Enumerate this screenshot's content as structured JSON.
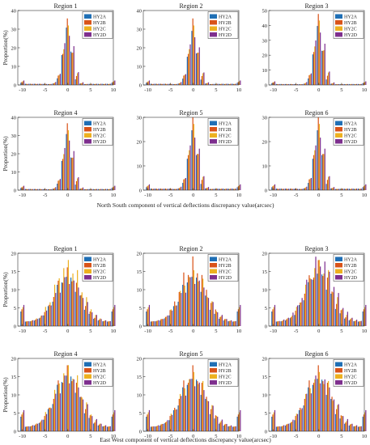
{
  "figure": {
    "series_colors": {
      "HY2A": "#1f6fb5",
      "HY2B": "#d95319",
      "HY2C": "#edb120",
      "HY2D": "#7e2f8e"
    },
    "xticks": [
      -10,
      -5,
      0,
      5,
      10
    ],
    "ylabel": "Proportion(%)",
    "groups": [
      {
        "xlabel": "North South component of vertical deflections discrepancy value(arcsec)"
      },
      {
        "xlabel": "East West component of vertical deflections discrepancy value(arcsec)"
      }
    ]
  },
  "chart_data": [
    {
      "group": 0,
      "type": "bar",
      "title": "Region 1",
      "legend": [
        "HY2A",
        "HY2B",
        "HY2C",
        "HY2D"
      ],
      "legend_position": "top-right",
      "xlim": [
        -11,
        10
      ],
      "ylim": [
        0,
        40
      ],
      "yticks": [
        0,
        10,
        20,
        30,
        40
      ],
      "series": [
        {
          "name": "HY2A",
          "peak": 34
        },
        {
          "name": "HY2B",
          "peak": 35
        },
        {
          "name": "HY2C",
          "peak": 33
        },
        {
          "name": "HY2D",
          "peak": 32
        }
      ]
    },
    {
      "group": 0,
      "type": "bar",
      "title": "Region 2",
      "legend": [
        "HY2A",
        "HY2B",
        "HY2C",
        "HY2D"
      ],
      "legend_position": "top-right",
      "xlim": [
        -11,
        10
      ],
      "ylim": [
        0,
        40
      ],
      "yticks": [
        0,
        10,
        20,
        30,
        40
      ],
      "series": [
        {
          "name": "HY2A",
          "peak": 32
        },
        {
          "name": "HY2B",
          "peak": 35
        },
        {
          "name": "HY2C",
          "peak": 33
        },
        {
          "name": "HY2D",
          "peak": 31
        }
      ]
    },
    {
      "group": 0,
      "type": "bar",
      "title": "Region 3",
      "legend": [
        "HY2A",
        "HY2B",
        "HY2C",
        "HY2D"
      ],
      "legend_position": "top-right",
      "xlim": [
        -11,
        10
      ],
      "ylim": [
        0,
        50
      ],
      "yticks": [
        0,
        10,
        20,
        30,
        40,
        50
      ],
      "series": [
        {
          "name": "HY2A",
          "peak": 44
        },
        {
          "name": "HY2B",
          "peak": 47
        },
        {
          "name": "HY2C",
          "peak": 45
        },
        {
          "name": "HY2D",
          "peak": 43
        }
      ]
    },
    {
      "group": 0,
      "type": "bar",
      "title": "Region 4",
      "legend": [
        "HY2A",
        "HY2B",
        "HY2C",
        "HY2D"
      ],
      "legend_position": "top-right",
      "xlim": [
        -11,
        10
      ],
      "ylim": [
        0,
        40
      ],
      "yticks": [
        0,
        10,
        20,
        30,
        40
      ],
      "series": [
        {
          "name": "HY2A",
          "peak": 34
        },
        {
          "name": "HY2B",
          "peak": 36
        },
        {
          "name": "HY2C",
          "peak": 34
        },
        {
          "name": "HY2D",
          "peak": 33
        }
      ]
    },
    {
      "group": 0,
      "type": "bar",
      "title": "Region 5",
      "legend": [
        "HY2A",
        "HY2B",
        "HY2C",
        "HY2D"
      ],
      "legend_position": "top-right",
      "xlim": [
        -11,
        10
      ],
      "ylim": [
        0,
        30
      ],
      "yticks": [
        0,
        10,
        20,
        30
      ],
      "series": [
        {
          "name": "HY2A",
          "peak": 27
        },
        {
          "name": "HY2B",
          "peak": 30
        },
        {
          "name": "HY2C",
          "peak": 28
        },
        {
          "name": "HY2D",
          "peak": 26
        }
      ]
    },
    {
      "group": 0,
      "type": "bar",
      "title": "Region 6",
      "legend": [
        "HY2A",
        "HY2B",
        "HY2C",
        "HY2D"
      ],
      "legend_position": "top-right",
      "xlim": [
        -11,
        10
      ],
      "ylim": [
        0,
        30
      ],
      "yticks": [
        0,
        10,
        20,
        30
      ],
      "series": [
        {
          "name": "HY2A",
          "peak": 27
        },
        {
          "name": "HY2B",
          "peak": 30
        },
        {
          "name": "HY2C",
          "peak": 28
        },
        {
          "name": "HY2D",
          "peak": 26
        }
      ]
    },
    {
      "group": 1,
      "type": "bar",
      "title": "Region 1",
      "legend": [
        "HY2A",
        "HY2B",
        "HY2C",
        "HY2D"
      ],
      "legend_position": "top-right",
      "xlim": [
        -11,
        10
      ],
      "ylim": [
        0,
        20
      ],
      "yticks": [
        0,
        5,
        10,
        15,
        20
      ],
      "series": [
        {
          "name": "HY2A",
          "peak": 14
        },
        {
          "name": "HY2B",
          "peak": 15
        },
        {
          "name": "HY2C",
          "peak": 18
        },
        {
          "name": "HY2D",
          "peak": 13
        }
      ]
    },
    {
      "group": 1,
      "type": "bar",
      "title": "Region 2",
      "legend": [
        "HY2A",
        "HY2B",
        "HY2C",
        "HY2D"
      ],
      "legend_position": "top-right",
      "xlim": [
        -11,
        10
      ],
      "ylim": [
        0,
        20
      ],
      "yticks": [
        0,
        5,
        10,
        15,
        20
      ],
      "series": [
        {
          "name": "HY2A",
          "peak": 14
        },
        {
          "name": "HY2B",
          "peak": 18
        },
        {
          "name": "HY2C",
          "peak": 15
        },
        {
          "name": "HY2D",
          "peak": 13
        }
      ]
    },
    {
      "group": 1,
      "type": "bar",
      "title": "Region 3",
      "legend": [
        "HY2A",
        "HY2B",
        "HY2C",
        "HY2D"
      ],
      "legend_position": "top-right",
      "xlim": [
        -11,
        10
      ],
      "ylim": [
        0,
        20
      ],
      "yticks": [
        0,
        5,
        10,
        15,
        20
      ],
      "series": [
        {
          "name": "HY2A",
          "peak": 15
        },
        {
          "name": "HY2B",
          "peak": 17
        },
        {
          "name": "HY2C",
          "peak": 18
        },
        {
          "name": "HY2D",
          "peak": 19
        }
      ]
    },
    {
      "group": 1,
      "type": "bar",
      "title": "Region 4",
      "legend": [
        "HY2A",
        "HY2B",
        "HY2C",
        "HY2D"
      ],
      "legend_position": "top-right",
      "xlim": [
        -11,
        10
      ],
      "ylim": [
        0,
        20
      ],
      "yticks": [
        0,
        5,
        10,
        15,
        20
      ],
      "series": [
        {
          "name": "HY2A",
          "peak": 16
        },
        {
          "name": "HY2B",
          "peak": 17
        },
        {
          "name": "HY2C",
          "peak": 18
        },
        {
          "name": "HY2D",
          "peak": 15
        }
      ]
    },
    {
      "group": 1,
      "type": "bar",
      "title": "Region 5",
      "legend": [
        "HY2A",
        "HY2B",
        "HY2C",
        "HY2D"
      ],
      "legend_position": "top-right",
      "xlim": [
        -11,
        10
      ],
      "ylim": [
        0,
        20
      ],
      "yticks": [
        0,
        5,
        10,
        15,
        20
      ],
      "series": [
        {
          "name": "HY2A",
          "peak": 15
        },
        {
          "name": "HY2B",
          "peak": 17
        },
        {
          "name": "HY2C",
          "peak": 16
        },
        {
          "name": "HY2D",
          "peak": 14
        }
      ]
    },
    {
      "group": 1,
      "type": "bar",
      "title": "Region 6",
      "legend": [
        "HY2A",
        "HY2B",
        "HY2C",
        "HY2D"
      ],
      "legend_position": "top-right",
      "xlim": [
        -11,
        10
      ],
      "ylim": [
        0,
        20
      ],
      "yticks": [
        0,
        5,
        10,
        15,
        20
      ],
      "series": [
        {
          "name": "HY2A",
          "peak": 15
        },
        {
          "name": "HY2B",
          "peak": 17
        },
        {
          "name": "HY2C",
          "peak": 16
        },
        {
          "name": "HY2D",
          "peak": 15
        }
      ]
    }
  ]
}
